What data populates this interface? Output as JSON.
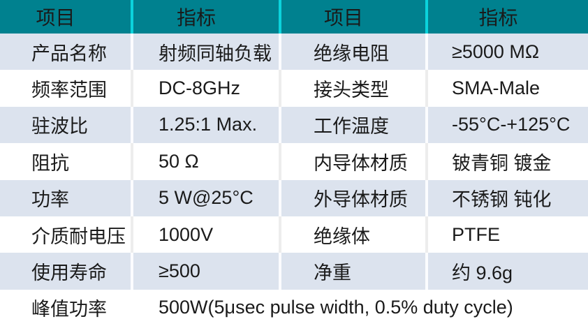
{
  "table": {
    "header": [
      "项目",
      "指标",
      "项目",
      "指标"
    ],
    "rows": [
      [
        "产品名称",
        "射频同轴负载",
        "绝缘电阻",
        "≥5000 MΩ"
      ],
      [
        "频率范围",
        "DC-8GHz",
        "接头类型",
        "SMA-Male"
      ],
      [
        "驻波比",
        "1.25:1 Max.",
        "工作温度",
        "-55°C-+125°C"
      ],
      [
        "阻抗",
        "50 Ω",
        "内导体材质",
        "铍青铜 镀金"
      ],
      [
        "功率",
        "5 W@25°C",
        "外导体材质",
        "不锈钢 钝化"
      ],
      [
        "介质耐电压",
        "1000V",
        "绝缘体",
        "PTFE"
      ],
      [
        "使用寿命",
        "≥500",
        "净重",
        "约 9.6g"
      ]
    ],
    "footer": {
      "label": "峰值功率",
      "value": "500W(5μsec pulse width, 0.5% duty cycle)"
    }
  },
  "colors": {
    "header_bg": "#00818f",
    "header_divider": "#0bd3dc",
    "alt_row_bg": "#dce3ee",
    "plain_row_bg": "#ffffff",
    "text": "#1a1a1a"
  }
}
